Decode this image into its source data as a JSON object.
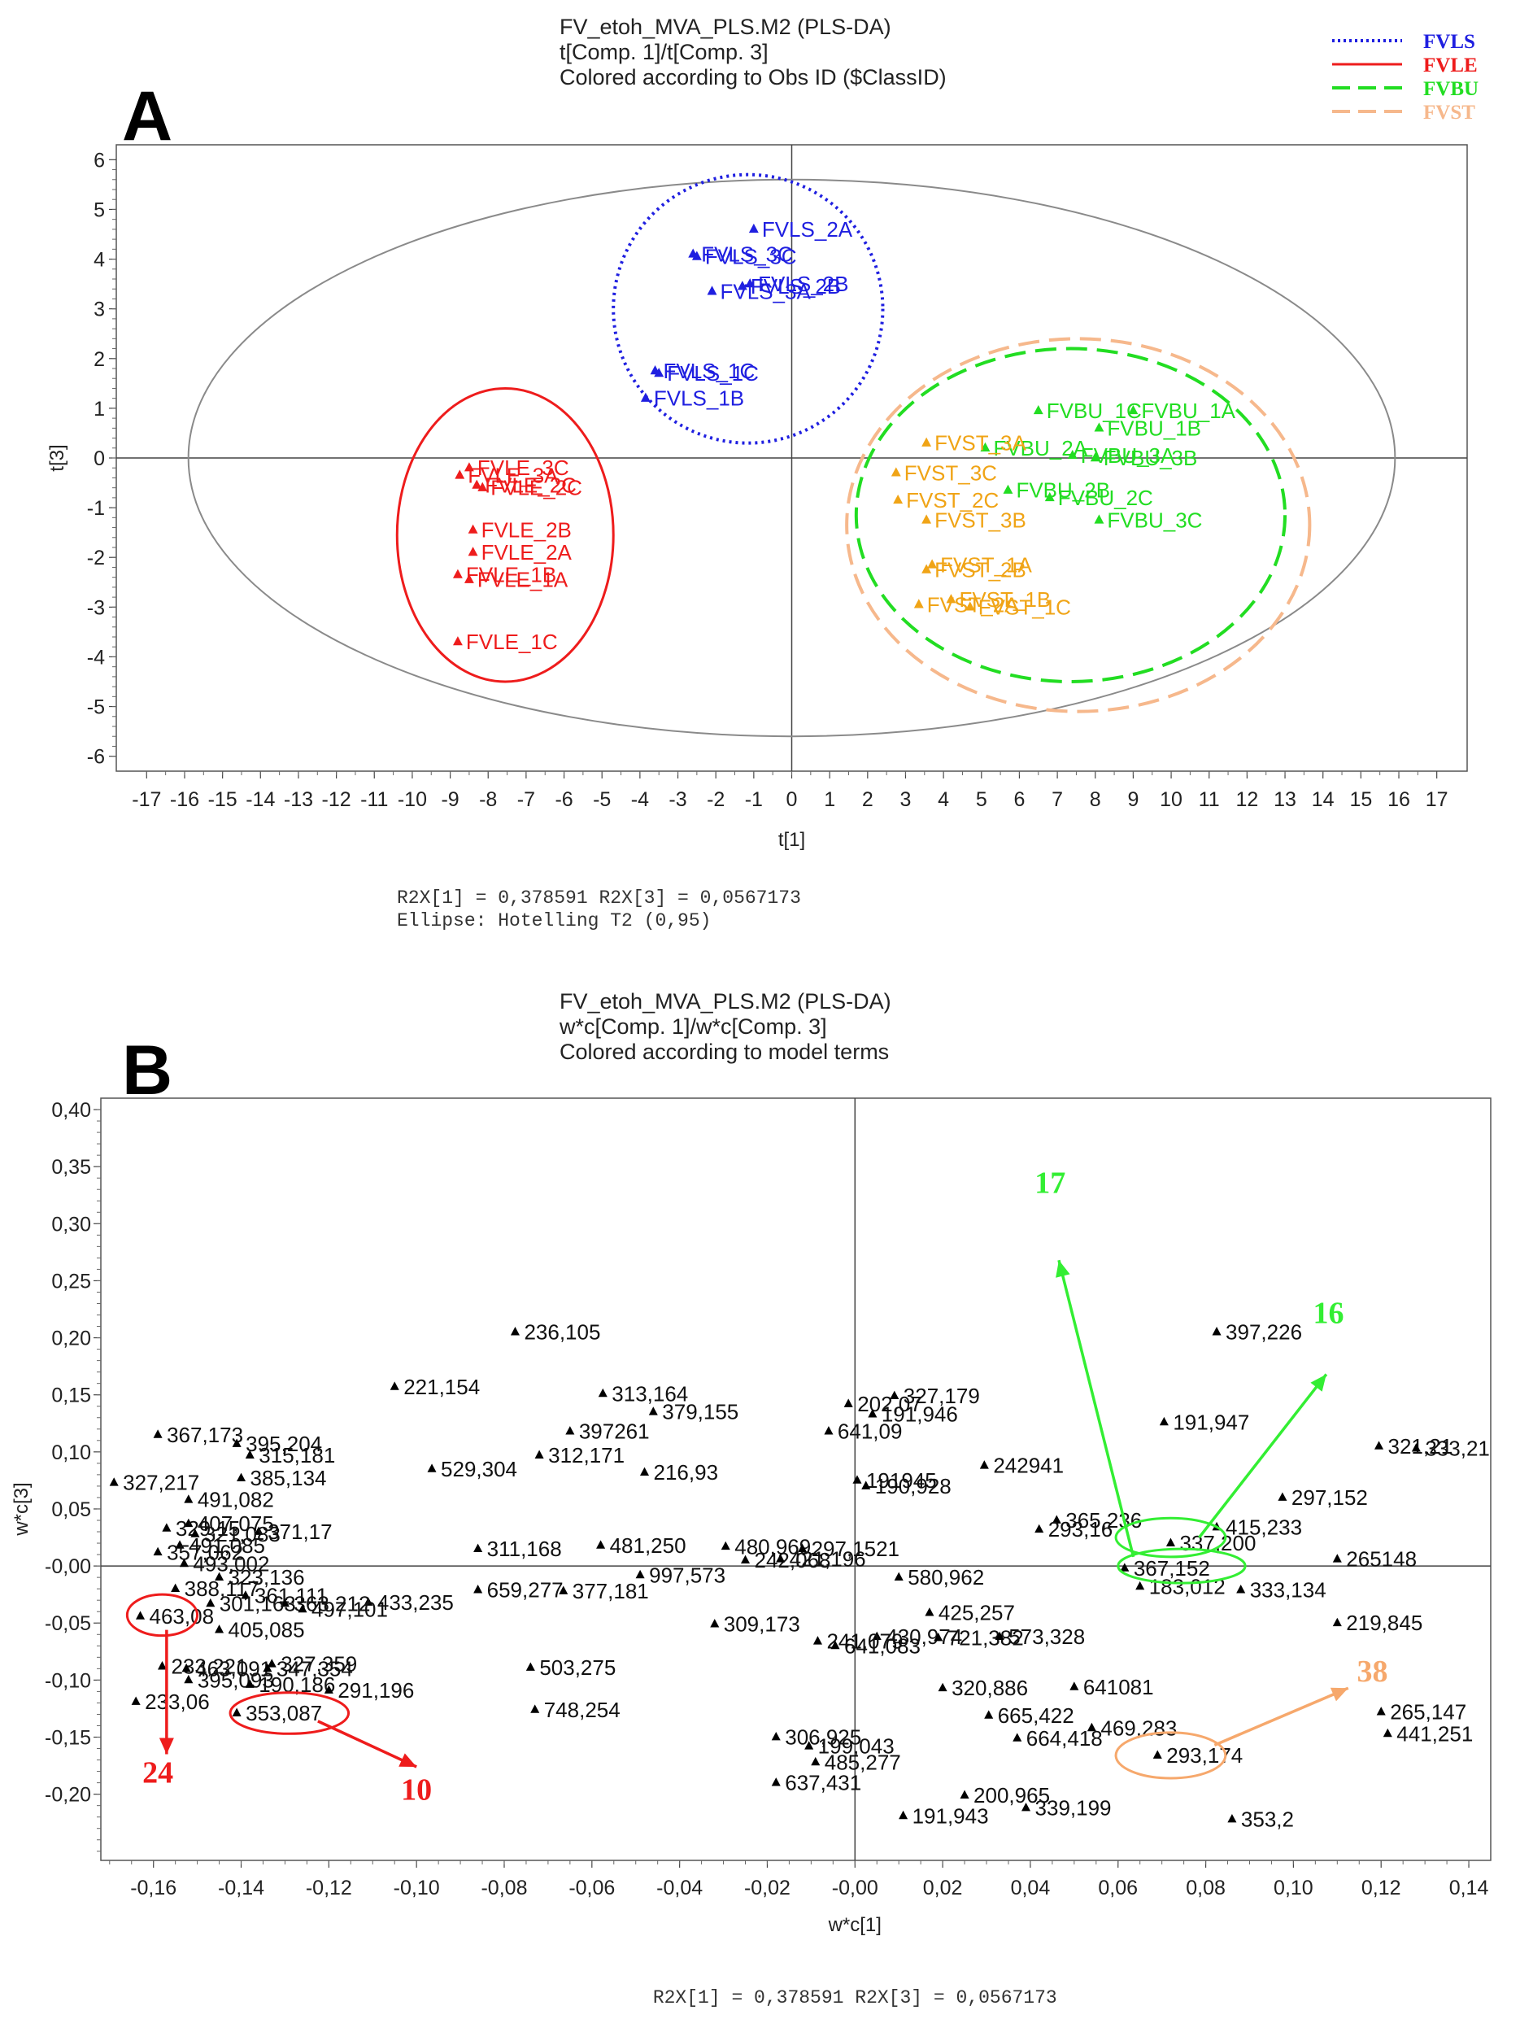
{
  "colors": {
    "FVLS": "#1f1fe0",
    "FVLE": "#ee1c1c",
    "FVBU": "#22dd22",
    "FVST": "#f0a416",
    "FVST_ellipse": "#f6b88c",
    "loading": "#000000",
    "annot_green": "#33ee33",
    "annot_red": "#ee1c1c",
    "annot_orange": "#f6a86c",
    "frame": "#555555"
  },
  "legend": [
    {
      "label": "FVLS",
      "color": "#1f1fe0",
      "style": "dotted"
    },
    {
      "label": "FVLE",
      "color": "#ee1c1c",
      "style": "solid"
    },
    {
      "label": "FVBU",
      "color": "#22dd22",
      "style": "dashed"
    },
    {
      "label": "FVST",
      "color": "#f6b88c",
      "style": "dashed"
    }
  ],
  "chart_data": [
    {
      "panel": "A",
      "type": "scatter",
      "title": [
        "FV_etoh_MVA_PLS.M2 (PLS-DA)",
        "t[Comp. 1]/t[Comp. 3]",
        "Colored according to Obs ID ($ClassID)"
      ],
      "xlabel": "t[1]",
      "ylabel": "t[3]",
      "xlim": [
        -17.8,
        17.8
      ],
      "ylim": [
        -6.3,
        6.3
      ],
      "xticks": [
        -17,
        -16,
        -15,
        -14,
        -13,
        -12,
        -11,
        -10,
        -9,
        -8,
        -7,
        -6,
        -5,
        -4,
        -3,
        -2,
        -1,
        0,
        1,
        2,
        3,
        4,
        5,
        6,
        7,
        8,
        9,
        10,
        11,
        12,
        13,
        14,
        15,
        16,
        17
      ],
      "yticks": [
        -6,
        -5,
        -4,
        -3,
        -2,
        -1,
        0,
        1,
        2,
        3,
        4,
        5,
        6
      ],
      "footer": [
        "R2X[1] = 0,378591          R2X[3] = 0,0567173",
        "Ellipse: Hotelling T2 (0,95)"
      ],
      "hotelling": {
        "cx": 0,
        "cy": 0,
        "rx": 15.9,
        "ry": 5.6
      },
      "class_ellipses": [
        {
          "cls": "FVLS",
          "cx": -1.15,
          "cy": 3.0,
          "rx": 3.55,
          "ry": 2.7,
          "style": "dotted"
        },
        {
          "cls": "FVLE",
          "cx": -7.55,
          "cy": -1.55,
          "rx": 2.85,
          "ry": 2.95,
          "style": "solid"
        },
        {
          "cls": "FVBU",
          "cx": 7.35,
          "cy": -1.15,
          "rx": 5.65,
          "ry": 3.35,
          "style": "dashed"
        },
        {
          "cls": "FVST",
          "cx": 7.55,
          "cy": -1.35,
          "rx": 6.1,
          "ry": 3.75,
          "style": "dashed"
        }
      ],
      "points": [
        {
          "label": "FVLS_2A",
          "cls": "FVLS",
          "x": -1.0,
          "y": 4.6
        },
        {
          "label": "FVLS_3C",
          "cls": "FVLS",
          "x": -2.6,
          "y": 4.1
        },
        {
          "label": "FVLS_3C",
          "cls": "FVLS",
          "x": -2.5,
          "y": 4.05
        },
        {
          "label": "FVLS_2B",
          "cls": "FVLS",
          "x": -1.3,
          "y": 3.45
        },
        {
          "label": "FVLS_2B",
          "cls": "FVLS",
          "x": -1.1,
          "y": 3.5
        },
        {
          "label": "FVLS_3A",
          "cls": "FVLS",
          "x": -2.1,
          "y": 3.35
        },
        {
          "label": "FVLS_1C",
          "cls": "FVLS",
          "x": -3.6,
          "y": 1.75
        },
        {
          "label": "FVLS_1C",
          "cls": "FVLS",
          "x": -3.5,
          "y": 1.7
        },
        {
          "label": "FVLS_1B",
          "cls": "FVLS",
          "x": -3.85,
          "y": 1.2
        },
        {
          "label": "FVLE_3C",
          "cls": "FVLE",
          "x": -8.5,
          "y": -0.2
        },
        {
          "label": "FVLE_3A",
          "cls": "FVLE",
          "x": -8.75,
          "y": -0.35
        },
        {
          "label": "FVLE_2C",
          "cls": "FVLE",
          "x": -8.3,
          "y": -0.55
        },
        {
          "label": "FVLE_2C",
          "cls": "FVLE",
          "x": -8.15,
          "y": -0.6
        },
        {
          "label": "FVLE_2B",
          "cls": "FVLE",
          "x": -8.4,
          "y": -1.45
        },
        {
          "label": "FVLE_2A",
          "cls": "FVLE",
          "x": -8.4,
          "y": -1.9
        },
        {
          "label": "FVLE_1B",
          "cls": "FVLE",
          "x": -8.8,
          "y": -2.35
        },
        {
          "label": "FVLE_1A",
          "cls": "FVLE",
          "x": -8.5,
          "y": -2.45
        },
        {
          "label": "FVLE_1C",
          "cls": "FVLE",
          "x": -8.8,
          "y": -3.7
        },
        {
          "label": "FVBU_1A",
          "cls": "FVBU",
          "x": 9.0,
          "y": 0.95
        },
        {
          "label": "FVBU_1C",
          "cls": "FVBU",
          "x": 6.5,
          "y": 0.95
        },
        {
          "label": "FVBU_1B",
          "cls": "FVBU",
          "x": 8.1,
          "y": 0.6
        },
        {
          "label": "FVBU_2A",
          "cls": "FVBU",
          "x": 5.1,
          "y": 0.2
        },
        {
          "label": "FVBU_3B",
          "cls": "FVBU",
          "x": 8.0,
          "y": 0.0
        },
        {
          "label": "FVBU_3A",
          "cls": "FVBU",
          "x": 7.4,
          "y": 0.05
        },
        {
          "label": "FVBU_2B",
          "cls": "FVBU",
          "x": 5.7,
          "y": -0.65
        },
        {
          "label": "FVBU_2C",
          "cls": "FVBU",
          "x": 6.8,
          "y": -0.8
        },
        {
          "label": "FVBU_3C",
          "cls": "FVBU",
          "x": 8.1,
          "y": -1.25
        },
        {
          "label": "FVST_3A",
          "cls": "FVST",
          "x": 3.55,
          "y": 0.3
        },
        {
          "label": "FVST_3C",
          "cls": "FVST",
          "x": 2.75,
          "y": -0.3
        },
        {
          "label": "FVST_2C",
          "cls": "FVST",
          "x": 2.8,
          "y": -0.85
        },
        {
          "label": "FVST_3B",
          "cls": "FVST",
          "x": 3.55,
          "y": -1.25
        },
        {
          "label": "FVST_1A",
          "cls": "FVST",
          "x": 3.7,
          "y": -2.15
        },
        {
          "label": "FVST_2B",
          "cls": "FVST",
          "x": 3.55,
          "y": -2.25
        },
        {
          "label": "FVST_1B",
          "cls": "FVST",
          "x": 4.2,
          "y": -2.85
        },
        {
          "label": "FVST_2A",
          "cls": "FVST",
          "x": 3.35,
          "y": -2.95
        },
        {
          "label": "FVST_1C",
          "cls": "FVST",
          "x": 4.7,
          "y": -3.0
        }
      ]
    },
    {
      "panel": "B",
      "type": "scatter",
      "title": [
        "FV_etoh_MVA_PLS.M2 (PLS-DA)",
        "w*c[Comp. 1]/w*c[Comp. 3]",
        "Colored according to model terms"
      ],
      "xlabel": "w*c[1]",
      "ylabel": "w*c[3]",
      "xlim": [
        -0.172,
        0.145
      ],
      "ylim": [
        -0.258,
        0.41
      ],
      "xticks": [
        -0.16,
        -0.14,
        -0.12,
        -0.1,
        -0.08,
        -0.06,
        -0.04,
        -0.02,
        0.0,
        0.02,
        0.04,
        0.06,
        0.08,
        0.1,
        0.12,
        0.14
      ],
      "xtick_labels": [
        "-0,16",
        "-0,14",
        "-0,12",
        "-0,10",
        "-0,08",
        "-0,06",
        "-0,04",
        "-0,02",
        "-0,00",
        "0,02",
        "0,04",
        "0,06",
        "0,08",
        "0,10",
        "0,12",
        "0,14"
      ],
      "yticks": [
        -0.2,
        -0.15,
        -0.1,
        -0.05,
        0.0,
        0.05,
        0.1,
        0.15,
        0.2,
        0.25,
        0.3,
        0.35,
        0.4
      ],
      "ytick_labels": [
        "-0,20",
        "-0,15",
        "-0,10",
        "-0,05",
        "-0,00",
        "0,05",
        "0,10",
        "0,15",
        "0,20",
        "0,25",
        "0,30",
        "0,35",
        "0,40"
      ],
      "footer": [
        "R2X[1] = 0,378591  R2X[3] = 0,0567173"
      ],
      "points": [
        {
          "label": "236,105",
          "x": -0.0775,
          "y": 0.205
        },
        {
          "label": "397,226",
          "x": 0.0825,
          "y": 0.205
        },
        {
          "label": "221,154",
          "x": -0.105,
          "y": 0.157
        },
        {
          "label": "313,164",
          "x": -0.0575,
          "y": 0.151
        },
        {
          "label": "327,179",
          "x": 0.009,
          "y": 0.149
        },
        {
          "label": "202,07",
          "x": -0.0015,
          "y": 0.142
        },
        {
          "label": "379,155",
          "x": -0.046,
          "y": 0.135
        },
        {
          "label": "191,946",
          "x": 0.004,
          "y": 0.133
        },
        {
          "label": "191,947",
          "x": 0.0705,
          "y": 0.126
        },
        {
          "label": "367,173",
          "x": -0.159,
          "y": 0.115
        },
        {
          "label": "397261",
          "x": -0.065,
          "y": 0.118
        },
        {
          "label": "641,09",
          "x": -0.006,
          "y": 0.118
        },
        {
          "label": "395,204",
          "x": -0.141,
          "y": 0.107
        },
        {
          "label": "321,21",
          "x": 0.1195,
          "y": 0.105
        },
        {
          "label": "333,21",
          "x": 0.128,
          "y": 0.103
        },
        {
          "label": "315,181",
          "x": -0.138,
          "y": 0.097
        },
        {
          "label": "312,171",
          "x": -0.072,
          "y": 0.097
        },
        {
          "label": "529,304",
          "x": -0.0965,
          "y": 0.085
        },
        {
          "label": "216,93",
          "x": -0.048,
          "y": 0.082
        },
        {
          "label": "242941",
          "x": 0.0295,
          "y": 0.088
        },
        {
          "label": "385,134",
          "x": -0.14,
          "y": 0.077
        },
        {
          "label": "327,217",
          "x": -0.169,
          "y": 0.073
        },
        {
          "label": "191945",
          "x": 0.0005,
          "y": 0.075
        },
        {
          "label": "190,928",
          "x": 0.0025,
          "y": 0.07
        },
        {
          "label": "491,082",
          "x": -0.152,
          "y": 0.058
        },
        {
          "label": "297,152",
          "x": 0.0975,
          "y": 0.06
        },
        {
          "label": "365,236",
          "x": 0.046,
          "y": 0.04
        },
        {
          "label": "415,233",
          "x": 0.0825,
          "y": 0.034
        },
        {
          "label": "293,16",
          "x": 0.042,
          "y": 0.032
        },
        {
          "label": "407,075",
          "x": -0.152,
          "y": 0.037
        },
        {
          "label": "329,15",
          "x": -0.157,
          "y": 0.033
        },
        {
          "label": "371,17",
          "x": -0.136,
          "y": 0.03
        },
        {
          "label": "321,083",
          "x": -0.1505,
          "y": 0.028
        },
        {
          "label": "311,168",
          "x": -0.086,
          "y": 0.015
        },
        {
          "label": "481,250",
          "x": -0.058,
          "y": 0.018
        },
        {
          "label": "480,969",
          "x": -0.0295,
          "y": 0.017
        },
        {
          "label": "297,1521",
          "x": -0.012,
          "y": 0.015
        },
        {
          "label": "491,085",
          "x": -0.154,
          "y": 0.018
        },
        {
          "label": "357,062",
          "x": -0.159,
          "y": 0.012
        },
        {
          "label": "337,200",
          "x": 0.072,
          "y": 0.02
        },
        {
          "label": "242,068",
          "x": -0.025,
          "y": 0.005
        },
        {
          "label": "421,196",
          "x": -0.017,
          "y": 0.006
        },
        {
          "label": "265148",
          "x": 0.11,
          "y": 0.006
        },
        {
          "label": "493,002",
          "x": -0.153,
          "y": 0.002
        },
        {
          "label": "367,152",
          "x": 0.0615,
          "y": -0.002
        },
        {
          "label": "997,573",
          "x": -0.049,
          "y": -0.008
        },
        {
          "label": "580,962",
          "x": 0.01,
          "y": -0.01
        },
        {
          "label": "323,136",
          "x": -0.145,
          "y": -0.01
        },
        {
          "label": "388,117",
          "x": -0.155,
          "y": -0.02
        },
        {
          "label": "183,012",
          "x": 0.065,
          "y": -0.018
        },
        {
          "label": "333,134",
          "x": 0.088,
          "y": -0.021
        },
        {
          "label": "659,277",
          "x": -0.086,
          "y": -0.021
        },
        {
          "label": "377,181",
          "x": -0.0665,
          "y": -0.022
        },
        {
          "label": "361,111",
          "x": -0.139,
          "y": -0.026
        },
        {
          "label": "433,235",
          "x": -0.111,
          "y": -0.032
        },
        {
          "label": "363,212",
          "x": -0.13,
          "y": -0.033
        },
        {
          "label": "301,163",
          "x": -0.147,
          "y": -0.033
        },
        {
          "label": "497,101",
          "x": -0.126,
          "y": -0.038
        },
        {
          "label": "425,257",
          "x": 0.017,
          "y": -0.041
        },
        {
          "label": "463,08",
          "x": -0.163,
          "y": -0.044
        },
        {
          "label": "309,173",
          "x": -0.032,
          "y": -0.051
        },
        {
          "label": "219,845",
          "x": 0.11,
          "y": -0.05
        },
        {
          "label": "405,085",
          "x": -0.145,
          "y": -0.056
        },
        {
          "label": "430,974",
          "x": 0.005,
          "y": -0.062
        },
        {
          "label": "721,382",
          "x": 0.019,
          "y": -0.063
        },
        {
          "label": "573,328",
          "x": 0.033,
          "y": -0.062
        },
        {
          "label": "241,079",
          "x": -0.0085,
          "y": -0.066
        },
        {
          "label": "641,083",
          "x": -0.0045,
          "y": -0.07
        },
        {
          "label": "233,221",
          "x": -0.158,
          "y": -0.088
        },
        {
          "label": "463,091",
          "x": -0.1525,
          "y": -0.09
        },
        {
          "label": "347,354",
          "x": -0.134,
          "y": -0.09
        },
        {
          "label": "327,359",
          "x": -0.133,
          "y": -0.086
        },
        {
          "label": "503,275",
          "x": -0.074,
          "y": -0.089
        },
        {
          "label": "395,093",
          "x": -0.152,
          "y": -0.1
        },
        {
          "label": "190,186",
          "x": -0.138,
          "y": -0.104
        },
        {
          "label": "291,196",
          "x": -0.12,
          "y": -0.109
        },
        {
          "label": "320,886",
          "x": 0.02,
          "y": -0.107
        },
        {
          "label": "641081",
          "x": 0.05,
          "y": -0.106
        },
        {
          "label": "233,06",
          "x": -0.164,
          "y": -0.119
        },
        {
          "label": "353,087",
          "x": -0.141,
          "y": -0.129
        },
        {
          "label": "748,254",
          "x": -0.073,
          "y": -0.126
        },
        {
          "label": "665,422",
          "x": 0.0305,
          "y": -0.131
        },
        {
          "label": "265,147",
          "x": 0.12,
          "y": -0.128
        },
        {
          "label": "469,283",
          "x": 0.054,
          "y": -0.142
        },
        {
          "label": "441,251",
          "x": 0.1215,
          "y": -0.147
        },
        {
          "label": "664,418",
          "x": 0.037,
          "y": -0.151
        },
        {
          "label": "306,925",
          "x": -0.018,
          "y": -0.15
        },
        {
          "label": "199,043",
          "x": -0.0105,
          "y": -0.158
        },
        {
          "label": "293,174",
          "x": 0.069,
          "y": -0.166
        },
        {
          "label": "485,277",
          "x": -0.009,
          "y": -0.172
        },
        {
          "label": "637,431",
          "x": -0.018,
          "y": -0.19
        },
        {
          "label": "200,965",
          "x": 0.025,
          "y": -0.201
        },
        {
          "label": "339,199",
          "x": 0.039,
          "y": -0.212
        },
        {
          "label": "191,943",
          "x": 0.011,
          "y": -0.219
        },
        {
          "label": "353,2",
          "x": 0.086,
          "y": -0.222
        }
      ],
      "annotations": [
        {
          "label": "17",
          "color": "green",
          "tx": 0.0445,
          "ty": 0.327,
          "arrow_from": [
            0.0635,
            0.008
          ],
          "arrow_to": [
            0.0465,
            0.268
          ]
        },
        {
          "label": "16",
          "color": "green",
          "tx": 0.108,
          "ty": 0.213,
          "arrow_from": [
            0.0785,
            0.025
          ],
          "arrow_to": [
            0.1075,
            0.168
          ]
        },
        {
          "label": "24",
          "color": "red",
          "tx": -0.159,
          "ty": -0.19,
          "arrow_from": [
            -0.157,
            -0.056
          ],
          "arrow_to": [
            -0.157,
            -0.165
          ]
        },
        {
          "label": "10",
          "color": "red",
          "tx": -0.1,
          "ty": -0.205,
          "arrow_from": [
            -0.1225,
            -0.136
          ],
          "arrow_to": [
            -0.1,
            -0.176
          ]
        },
        {
          "label": "38",
          "color": "orange",
          "tx": 0.118,
          "ty": -0.101,
          "arrow_from": [
            0.082,
            -0.157
          ],
          "arrow_to": [
            0.1125,
            -0.107
          ]
        }
      ],
      "highlight_ellipses": [
        {
          "color": "green",
          "cx": 0.072,
          "cy": 0.025,
          "rx": 0.0125,
          "ry": 0.017
        },
        {
          "color": "green",
          "cx": 0.0745,
          "cy": 0.0,
          "rx": 0.0145,
          "ry": 0.015
        },
        {
          "color": "red",
          "cx": -0.158,
          "cy": -0.043,
          "rx": 0.008,
          "ry": 0.018
        },
        {
          "color": "red",
          "cx": -0.129,
          "cy": -0.129,
          "rx": 0.0135,
          "ry": 0.018
        },
        {
          "color": "orange",
          "cx": 0.072,
          "cy": -0.166,
          "rx": 0.0125,
          "ry": 0.02
        }
      ]
    }
  ]
}
